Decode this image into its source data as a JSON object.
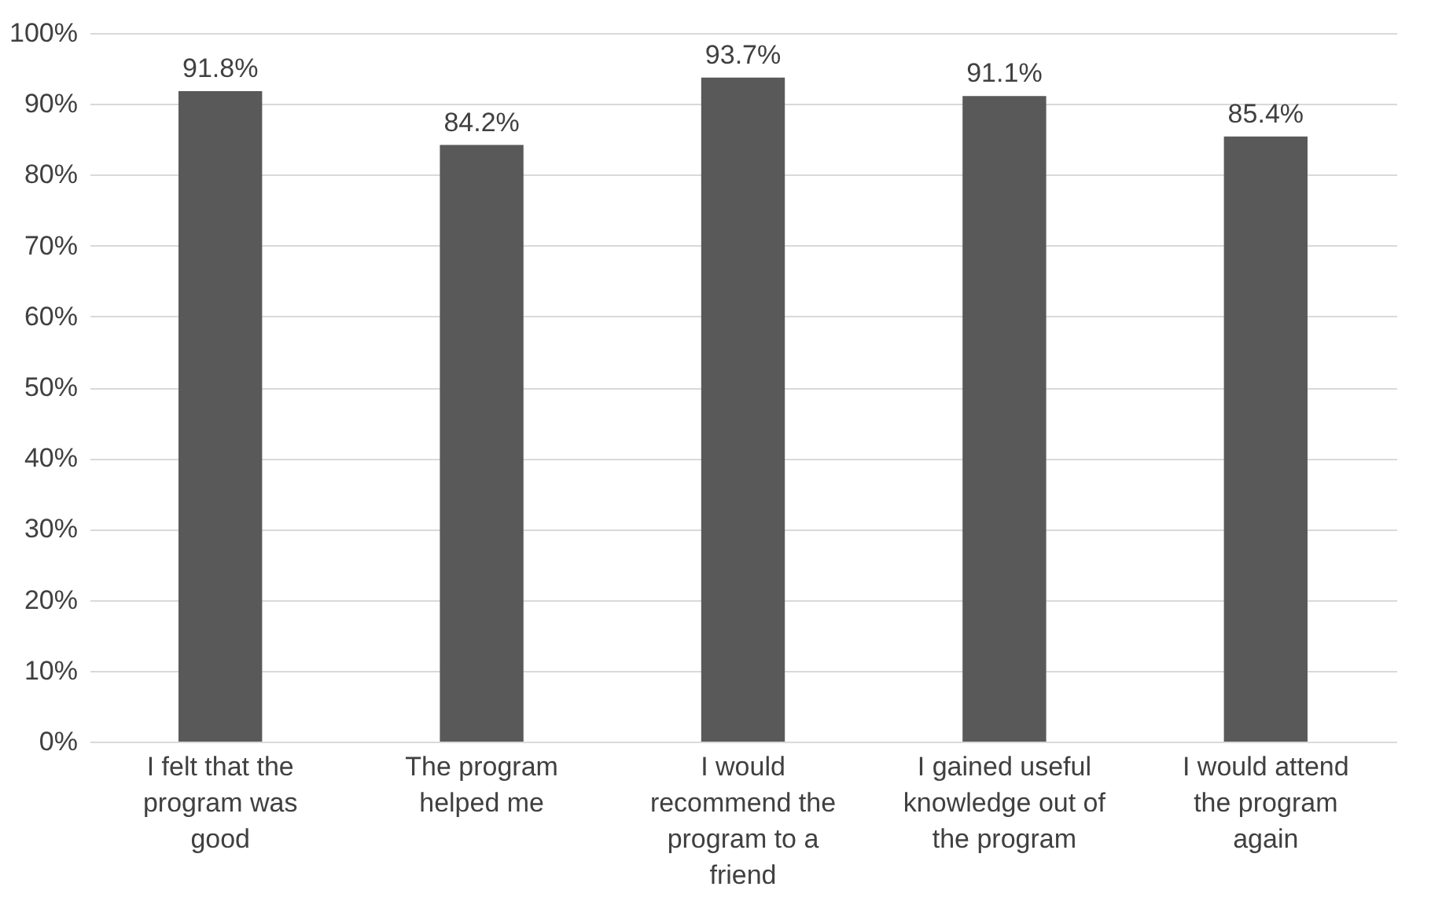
{
  "chart_data": {
    "type": "bar",
    "categories": [
      "I felt that the program was good",
      "The program helped me",
      "I would recommend the program to a friend",
      "I gained useful knowledge out of the program",
      "I would attend the program again"
    ],
    "values": [
      91.8,
      84.2,
      93.7,
      91.1,
      85.4
    ],
    "color": "#595959",
    "value_labels": [
      "91.8%",
      "84.2%",
      "93.7%",
      "91.1%",
      "85.4%"
    ],
    "ylim": [
      0,
      100
    ],
    "yticks": [
      {
        "value": 0,
        "label": "0%"
      },
      {
        "value": 10,
        "label": "10%"
      },
      {
        "value": 20,
        "label": "20%"
      },
      {
        "value": 30,
        "label": "30%"
      },
      {
        "value": 40,
        "label": "40%"
      },
      {
        "value": 50,
        "label": "50%"
      },
      {
        "value": 60,
        "label": "60%"
      },
      {
        "value": 70,
        "label": "70%"
      },
      {
        "value": 80,
        "label": "80%"
      },
      {
        "value": 90,
        "label": "90%"
      },
      {
        "value": 100,
        "label": "100%"
      }
    ],
    "grid": "y"
  }
}
